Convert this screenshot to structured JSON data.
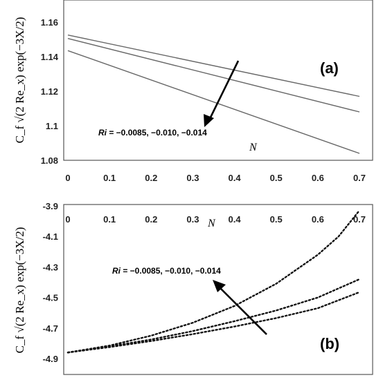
{
  "chart_data": [
    {
      "panel": "(a)",
      "type": "line",
      "xlabel": "N",
      "ylabel": "C_f √(2 Re_x) exp(−3X/2)",
      "xlim": [
        0,
        0.7
      ],
      "ylim": [
        1.08,
        1.16
      ],
      "xticks": [
        "0",
        "0.1",
        "0.2",
        "0.3",
        "0.4",
        "0.5",
        "0.6",
        "0.7"
      ],
      "yticks": [
        "1.16",
        "1.14",
        "1.12",
        "1.1",
        "1.08"
      ],
      "annotation": "Ri = −0.0085, −0.010, −0.014",
      "arrow": "pointing down-left (increasing |Ri|)",
      "line_style": "solid",
      "series": [
        {
          "x": [
            0,
            0.7
          ],
          "y": [
            1.1525,
            1.117
          ]
        },
        {
          "x": [
            0,
            0.7
          ],
          "y": [
            1.1505,
            1.108
          ]
        },
        {
          "x": [
            0,
            0.7
          ],
          "y": [
            1.1435,
            1.084
          ]
        }
      ]
    },
    {
      "panel": "(b)",
      "type": "line",
      "xlabel": "N",
      "ylabel": "C_f √(2 Re_x) exp(−3X/2)",
      "xlim": [
        0,
        0.7
      ],
      "ylim": [
        -4.9,
        -3.9
      ],
      "xticks": [
        "0",
        "0.1",
        "0.2",
        "0.3",
        "0.4",
        "0.5",
        "0.6",
        "0.7"
      ],
      "yticks": [
        "-3.9",
        "-4.1",
        "-4.3",
        "-4.5",
        "-4.7",
        "-4.9"
      ],
      "annotation": "Ri = −0.0085, −0.010, −0.014",
      "arrow": "pointing up-left (increasing |Ri|)",
      "line_style": "dotted",
      "series": [
        {
          "x": [
            0,
            0.1,
            0.2,
            0.3,
            0.4,
            0.5,
            0.6,
            0.65,
            0.7
          ],
          "y": [
            -4.86,
            -4.815,
            -4.75,
            -4.665,
            -4.555,
            -4.41,
            -4.22,
            -4.1,
            -3.93
          ]
        },
        {
          "x": [
            0,
            0.1,
            0.2,
            0.3,
            0.4,
            0.5,
            0.6,
            0.7
          ],
          "y": [
            -4.86,
            -4.82,
            -4.775,
            -4.72,
            -4.655,
            -4.585,
            -4.5,
            -4.38
          ]
        },
        {
          "x": [
            0,
            0.1,
            0.2,
            0.3,
            0.4,
            0.5,
            0.6,
            0.7
          ],
          "y": [
            -4.86,
            -4.825,
            -4.785,
            -4.74,
            -4.69,
            -4.635,
            -4.57,
            -4.465
          ]
        }
      ]
    }
  ],
  "text": {
    "panel_a_label": "(a)",
    "panel_b_label": "(b)",
    "ri_label": "Ri",
    "ri_values": " = −0.0085, −0.010, −0.014",
    "x_var": "N",
    "ylabel_plain": "C_f √(2 Re_x) exp(−3X/2)"
  }
}
